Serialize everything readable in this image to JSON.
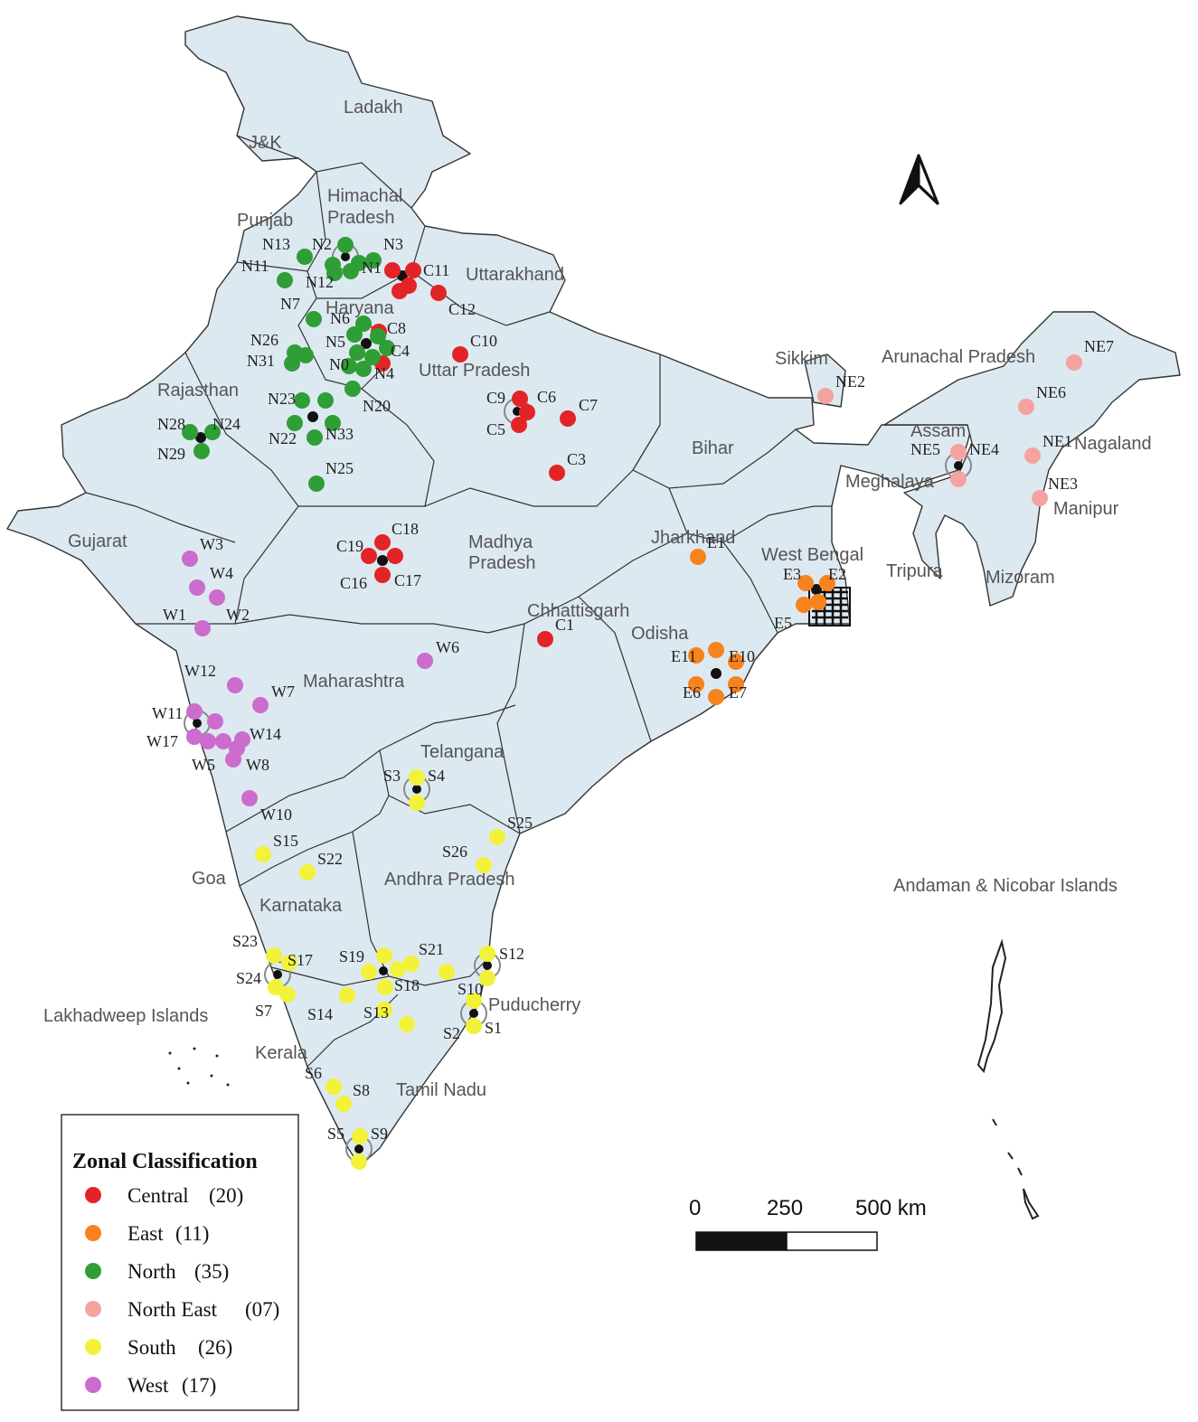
{
  "colors": {
    "central": "#e32426",
    "east": "#f7821e",
    "north": "#2f9e36",
    "north_east": "#f5a3a0",
    "south": "#f2f23a",
    "west": "#cc6ccc",
    "land": "#dde9f1"
  },
  "states": {
    "ladakh": "Ladakh",
    "jk": "J&K",
    "himachal_1": "Himachal",
    "himachal_2": "Pradesh",
    "punjab": "Punjab",
    "uttarakhand": "Uttarakhand",
    "haryana": "Haryana",
    "uttar_pradesh": "Uttar Pradesh",
    "rajasthan": "Rajasthan",
    "sikkim": "Sikkim",
    "arunachal": "Arunachal Pradesh",
    "assam": "Assam",
    "nagaland": "Nagaland",
    "meghalaya": "Meghalaya",
    "manipur": "Manipur",
    "bihar": "Bihar",
    "jharkhand": "Jharkhand",
    "west_bengal": "West Bengal",
    "tripura": "Tripura",
    "mizoram": "Mizoram",
    "gujarat": "Gujarat",
    "madhya_1": "Madhya",
    "madhya_2": "Pradesh",
    "chhattisgarh": "Chhattisgarh",
    "odisha": "Odisha",
    "maharashtra": "Maharashtra",
    "telangana": "Telangana",
    "goa": "Goa",
    "andhra": "Andhra Pradesh",
    "karnataka": "Karnataka",
    "andaman": "Andaman & Nicobar Islands",
    "lakshadweep": "Lakhadweep Islands",
    "puducherry": "Puducherry",
    "kerala": "Kerala",
    "tamil_nadu": "Tamil Nadu"
  },
  "sites": {
    "c11": "C11",
    "c12": "C12",
    "c8": "C8",
    "c4": "C4",
    "c10": "C10",
    "c9": "C9",
    "c6": "C6",
    "c5": "C5",
    "c7": "C7",
    "c3": "C3",
    "c18": "C18",
    "c19": "C19",
    "c16": "C16",
    "c17": "C17",
    "c1": "C1",
    "n13": "N13",
    "n2": "N2",
    "n3": "N3",
    "n11": "N11",
    "n12": "N12",
    "n1": "N1",
    "n7": "N7",
    "n6": "N6",
    "n5": "N5",
    "n26": "N26",
    "n31": "N31",
    "n0": "N0",
    "n4": "N4",
    "n23": "N23",
    "n20": "N20",
    "n22": "N22",
    "n33": "N33",
    "n28": "N28",
    "n24": "N24",
    "n29": "N29",
    "n25": "N25",
    "ne7": "NE7",
    "ne2": "NE2",
    "ne6": "NE6",
    "ne5": "NE5",
    "ne4": "NE4",
    "ne1": "NE1",
    "ne3": "NE3",
    "e1": "E1",
    "e3": "E3",
    "e2": "E2",
    "e5": "E5",
    "e11": "E11",
    "e10": "E10",
    "e6": "E6",
    "e7": "E7",
    "w3": "W3",
    "w4": "W4",
    "w1": "W1",
    "w2": "W2",
    "w6": "W6",
    "w12": "W12",
    "w7": "W7",
    "w11": "W11",
    "w17": "W17",
    "w14": "W14",
    "w5": "W5",
    "w8": "W8",
    "w10": "W10",
    "s3": "S3",
    "s4": "S4",
    "s25": "S25",
    "s15": "S15",
    "s26": "S26",
    "s22": "S22",
    "s23": "S23",
    "s17": "S17",
    "s19": "S19",
    "s21": "S21",
    "s12": "S12",
    "s24": "S24",
    "s18": "S18",
    "s10": "S10",
    "s7": "S7",
    "s14": "S14",
    "s13": "S13",
    "s2": "S2",
    "s1": "S1",
    "s6": "S6",
    "s8": "S8",
    "s5": "S5",
    "s9": "S9"
  },
  "legend": {
    "title": "Zonal Classification",
    "items": [
      {
        "label": "Central",
        "count": "(20)"
      },
      {
        "label": "East",
        "count": "(11)"
      },
      {
        "label": "North",
        "count": "(35)"
      },
      {
        "label": "North East",
        "count": "(07)"
      },
      {
        "label": "South",
        "count": "(26)"
      },
      {
        "label": "West",
        "count": "(17)"
      }
    ]
  },
  "scale": {
    "tick_0": "0",
    "tick_1": "250",
    "tick_2": "500 km"
  }
}
